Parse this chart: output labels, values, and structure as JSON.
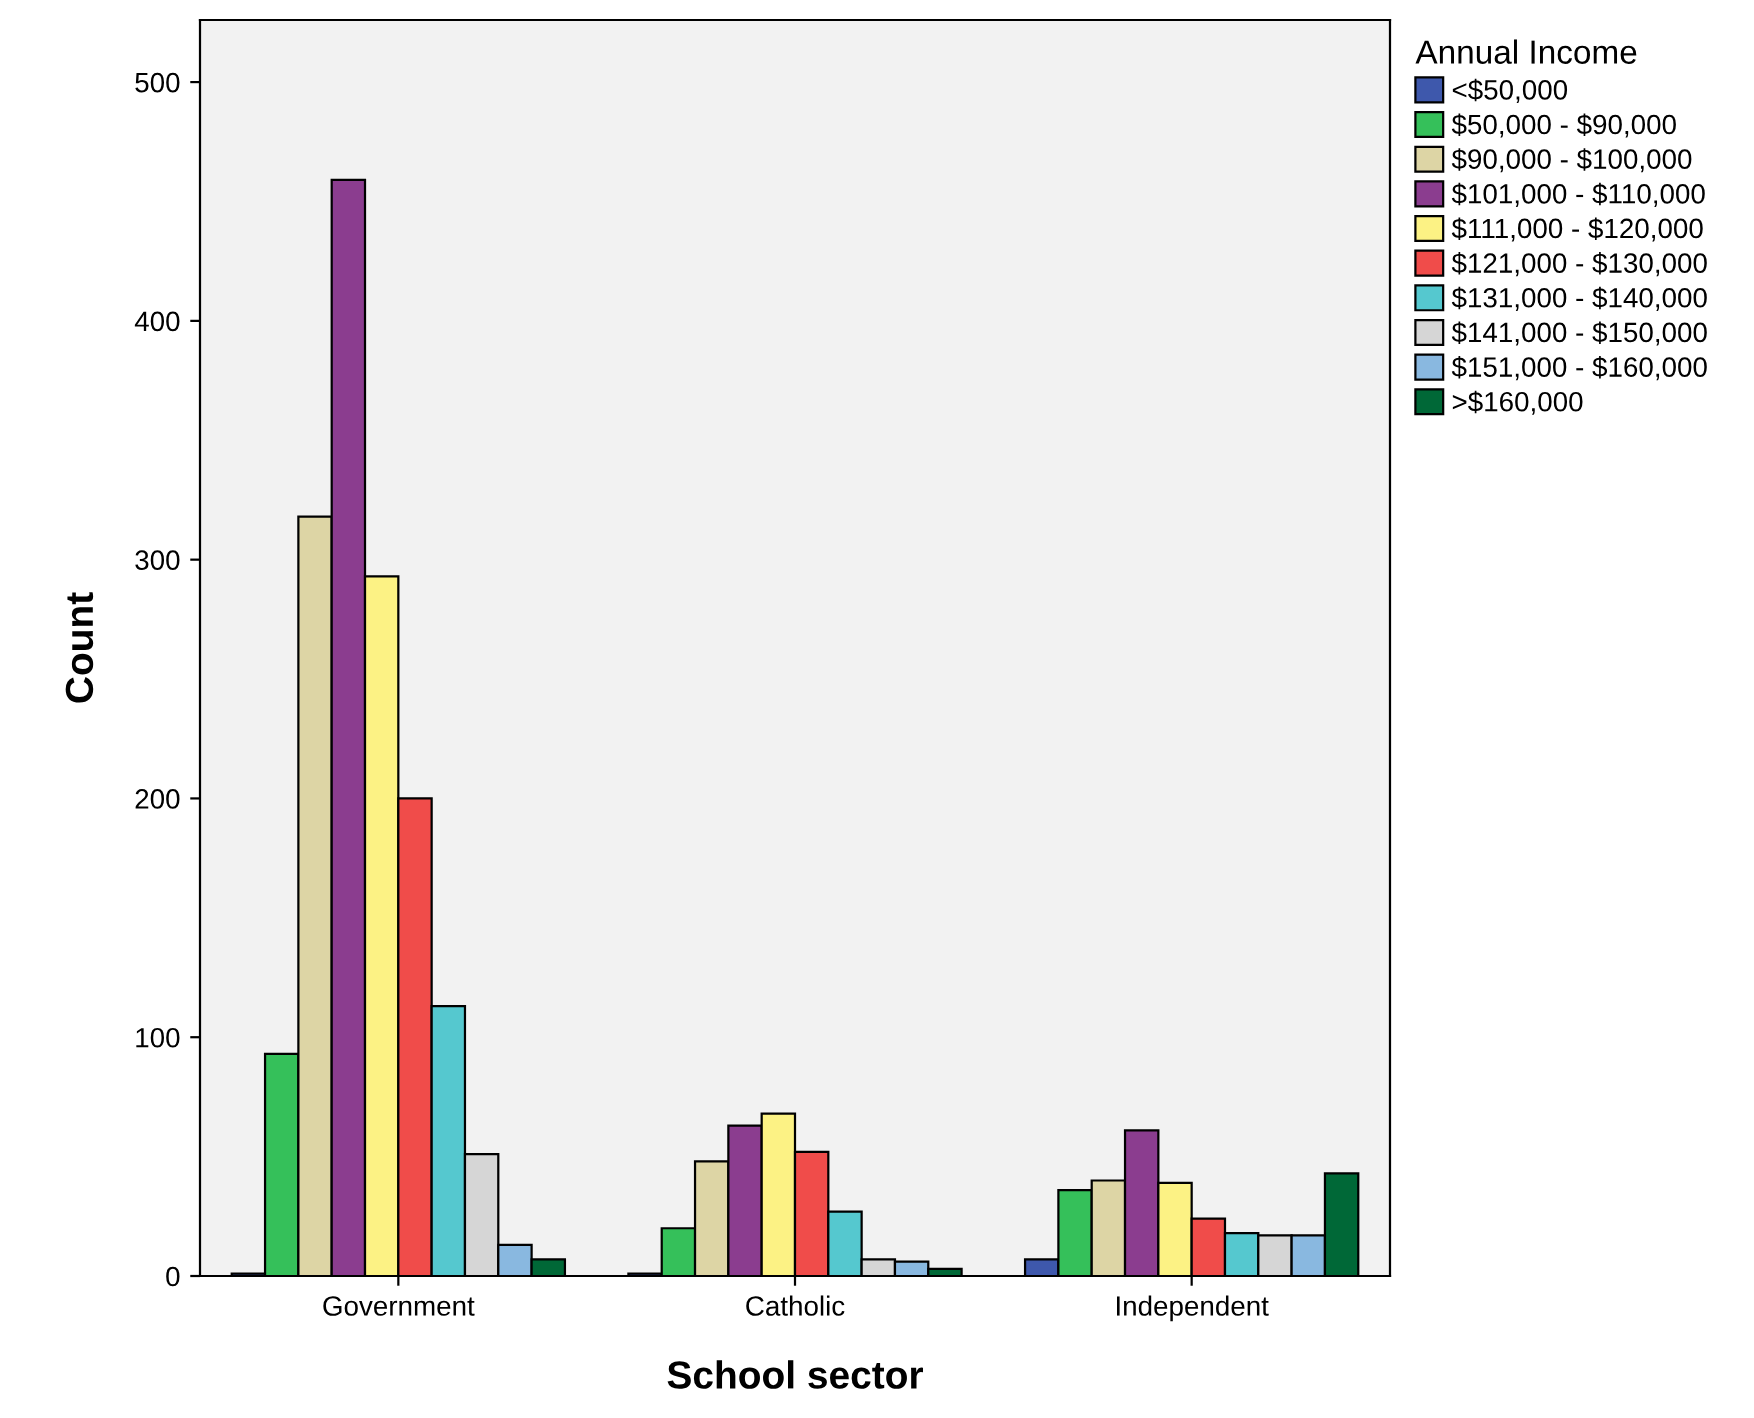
{
  "chart_data": {
    "type": "bar",
    "xlabel": "School sector",
    "ylabel": "Count",
    "legend_title": "Annual Income",
    "categories": [
      "Government",
      "Catholic",
      "Independent"
    ],
    "series": [
      {
        "name": "<$50,000",
        "color": "#3e58ac",
        "values": [
          1,
          1,
          7
        ]
      },
      {
        "name": "$50,000 - $90,000",
        "color": "#35c05a",
        "values": [
          93,
          20,
          36
        ]
      },
      {
        "name": "$90,000 - $100,000",
        "color": "#ddd5a5",
        "values": [
          318,
          48,
          40
        ]
      },
      {
        "name": "$101,000 - $110,000",
        "color": "#8b3d8f",
        "values": [
          459,
          63,
          61
        ]
      },
      {
        "name": "$111,000 - $120,000",
        "color": "#fcf284",
        "values": [
          293,
          68,
          39
        ]
      },
      {
        "name": "$121,000 - $130,000",
        "color": "#f04c4a",
        "values": [
          200,
          52,
          24
        ]
      },
      {
        "name": "$131,000 - $140,000",
        "color": "#55c8cf",
        "values": [
          113,
          27,
          18
        ]
      },
      {
        "name": "$141,000 - $150,000",
        "color": "#d6d6d6",
        "values": [
          51,
          7,
          17
        ]
      },
      {
        "name": "$151,000 - $160,000",
        "color": "#89b8e0",
        "values": [
          13,
          6,
          17
        ]
      },
      {
        "name": ">$160,000",
        "color": "#006837",
        "values": [
          7,
          3,
          43
        ]
      }
    ],
    "ylim": [
      0,
      526
    ],
    "yticks": [
      0,
      100,
      200,
      300,
      400,
      500
    ],
    "grid": false,
    "legend": "top right"
  }
}
